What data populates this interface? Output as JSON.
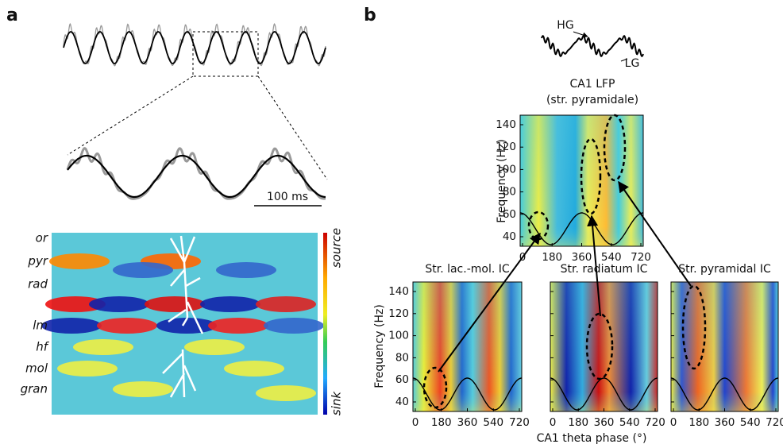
{
  "panel_a": {
    "label": "a",
    "scale_bar": "100 ms",
    "layers": [
      "or",
      "pyr",
      "rad",
      "lm",
      "hf",
      "mol",
      "gran"
    ],
    "colorbar": {
      "top": "source",
      "bottom": "sink"
    }
  },
  "panel_b": {
    "label": "b",
    "trace_labels": [
      "HG",
      "LG"
    ],
    "lfp_title": "CA1 LFP",
    "lfp_subtitle": "(str. pyramidale)",
    "y_label": "Frequency (Hz)",
    "x_label": "CA1 theta phase (°)",
    "yticks": [
      40,
      60,
      80,
      100,
      120,
      140
    ],
    "xticks": [
      0,
      180,
      360,
      540,
      720
    ],
    "ic_titles": [
      "Str. lac.-mol. IC",
      "Str. radiatum IC",
      "Str. pyramidal IC"
    ]
  }
}
